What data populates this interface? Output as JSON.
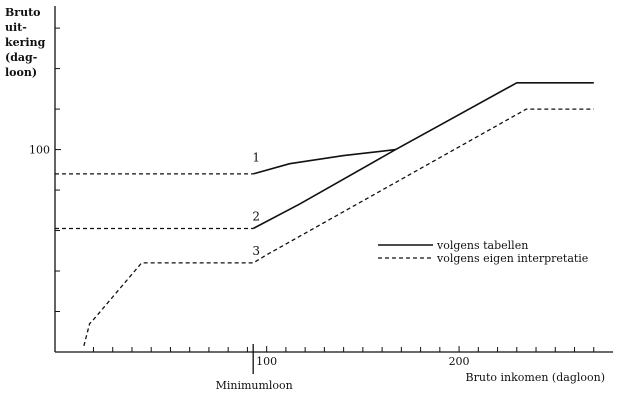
{
  "chart_data": {
    "type": "line",
    "title": "",
    "ylabel_lines": [
      "Bruto",
      "uit-",
      "kering",
      "(dag-",
      "loon)"
    ],
    "xlabel": "Bruto inkomen (dagloon)",
    "xlim": [
      -10,
      280
    ],
    "ylim": [
      0,
      165
    ],
    "x_ticks": [
      {
        "value": 100,
        "label": "100"
      },
      {
        "value": 200,
        "label": "200"
      }
    ],
    "y_ticks": [
      {
        "value": 100,
        "label": "100"
      }
    ],
    "x_minor_ticks": [
      10,
      20,
      30,
      40,
      50,
      60,
      70,
      80,
      90,
      110,
      120,
      130,
      140,
      150,
      160,
      170,
      180,
      190,
      210,
      220,
      230,
      240,
      250,
      260,
      270
    ],
    "y_minor_ticks": [
      20,
      40,
      60,
      80,
      120,
      140,
      160
    ],
    "reference_marker": {
      "x": 93,
      "label": "Minimumloon"
    },
    "curve_labels": [
      {
        "text": "1",
        "x": 93,
        "y": 94
      },
      {
        "text": "2",
        "x": 93,
        "y": 65
      },
      {
        "text": "3",
        "x": 93,
        "y": 48
      }
    ],
    "legend": {
      "position": "right",
      "entries": [
        {
          "label": "volgens tabellen",
          "style": "solid"
        },
        {
          "label": "volgens eigen interpretatie",
          "style": "dashed"
        }
      ]
    },
    "series": [
      {
        "style": "dashed",
        "points": [
          [
            -10,
            88
          ],
          [
            93,
            88
          ]
        ]
      },
      {
        "style": "solid",
        "points": [
          [
            93,
            88
          ],
          [
            112,
            93
          ],
          [
            140,
            97
          ],
          [
            167,
            100
          ]
        ]
      },
      {
        "style": "dashed",
        "points": [
          [
            -10,
            61
          ],
          [
            93,
            61
          ]
        ]
      },
      {
        "style": "solid",
        "points": [
          [
            93,
            61
          ],
          [
            117,
            73
          ],
          [
            167,
            100
          ],
          [
            230,
            133
          ],
          [
            270,
            133
          ]
        ]
      },
      {
        "style": "dashed",
        "points": [
          [
            5,
            3
          ],
          [
            8,
            14
          ],
          [
            10,
            16
          ],
          [
            35,
            44
          ],
          [
            93,
            44
          ],
          [
            100,
            48
          ],
          [
            235,
            120
          ],
          [
            270,
            120
          ]
        ]
      }
    ]
  }
}
